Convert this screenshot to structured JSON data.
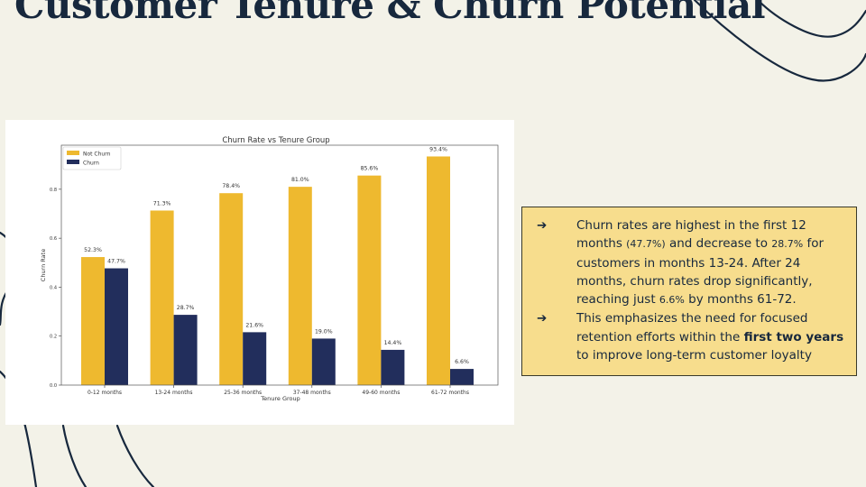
{
  "slide": {
    "title": "Customer Tenure & Churn Potential"
  },
  "notes": {
    "bullet_icon": "right-arrow-icon",
    "items": [
      {
        "parts": [
          {
            "text": "Churn rates are highest in the first 12 months ",
            "style": "normal"
          },
          {
            "text": "(47.7%)",
            "style": "small"
          },
          {
            "text": " and decrease to ",
            "style": "normal"
          },
          {
            "text": "28.7%",
            "style": "small"
          },
          {
            "text": " for customers in months 13-24. After 24 months, churn rates drop significantly, reaching just ",
            "style": "normal"
          },
          {
            "text": "6.6%",
            "style": "small"
          },
          {
            "text": " by months 61-72.",
            "style": "normal"
          }
        ]
      },
      {
        "parts": [
          {
            "text": "This emphasizes the need for focused retention efforts within the ",
            "style": "normal"
          },
          {
            "text": "first two years",
            "style": "bold"
          },
          {
            "text": " to improve long-term customer loyalty",
            "style": "normal"
          }
        ]
      }
    ]
  },
  "colors": {
    "background": "#f3f2e8",
    "title": "#17283d",
    "not_churn": "#eeb92f",
    "churn": "#222e5c",
    "note_box": "#f7dd8d"
  },
  "chart_data": {
    "type": "bar",
    "title": "Churn Rate vs Tenure Group",
    "xlabel": "Tenure Group",
    "ylabel": "Churn Rate",
    "categories": [
      "0-12 months",
      "13-24 months",
      "25-36 months",
      "37-48 months",
      "49-60 months",
      "61-72 months"
    ],
    "series": [
      {
        "name": "Not Churn",
        "values": [
          0.523,
          0.713,
          0.784,
          0.81,
          0.856,
          0.934
        ],
        "labels": [
          "52.3%",
          "71.3%",
          "78.4%",
          "81.0%",
          "85.6%",
          "93.4%"
        ],
        "color": "#eeb92f"
      },
      {
        "name": "Churn",
        "values": [
          0.477,
          0.287,
          0.216,
          0.19,
          0.144,
          0.066
        ],
        "labels": [
          "47.7%",
          "28.7%",
          "21.6%",
          "19.0%",
          "14.4%",
          "6.6%"
        ],
        "color": "#222e5c"
      }
    ],
    "yticks": [
      "0.0",
      "0.2",
      "0.4",
      "0.6",
      "0.8"
    ],
    "ylim": [
      0,
      0.98
    ],
    "grid": false,
    "legend": "top-left"
  }
}
